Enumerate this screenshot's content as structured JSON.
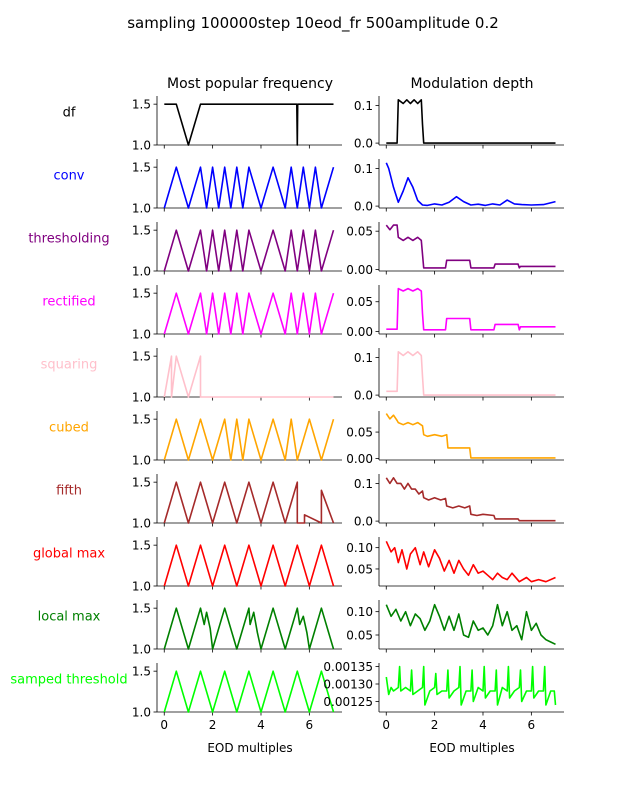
{
  "figure": {
    "title": "sampling 100000step 10eod_fr 500amplitude 0.2",
    "col_titles": [
      "Most popular frequency",
      "Modulation depth"
    ],
    "xlabel": "EOD multiples"
  },
  "rows": [
    {
      "label": "df",
      "color": "#000000"
    },
    {
      "label": "conv",
      "color": "#0000ff"
    },
    {
      "label": "thresholding",
      "color": "#800080"
    },
    {
      "label": "rectified",
      "color": "#ff00ff"
    },
    {
      "label": "squaring",
      "color": "#ffc0cb"
    },
    {
      "label": "cubed",
      "color": "#ffa500"
    },
    {
      "label": "fifth",
      "color": "#a52a2a"
    },
    {
      "label": "global max",
      "color": "#ff0000"
    },
    {
      "label": "local max",
      "color": "#008000"
    },
    {
      "label": "samped threshold",
      "color": "#00ff00"
    }
  ],
  "chart_data": [
    {
      "type": "line",
      "panel": "df-frequency",
      "color": "#000000",
      "ylim": [
        1.0,
        1.6
      ],
      "yticks": [
        "1.0",
        "1.5"
      ],
      "x": [
        0,
        0.5,
        1.0,
        1.5,
        2,
        3,
        4,
        5,
        5.48,
        5.5,
        5.52,
        6,
        7
      ],
      "y": [
        1.5,
        1.5,
        1.0,
        1.5,
        1.5,
        1.5,
        1.5,
        1.5,
        1.5,
        1.0,
        1.5,
        1.5,
        1.5
      ]
    },
    {
      "type": "line",
      "panel": "df-depth",
      "color": "#000000",
      "ylim": [
        -0.005,
        0.125
      ],
      "yticks": [
        "0.0",
        "0.1"
      ],
      "x": [
        0,
        0.45,
        0.5,
        0.7,
        0.85,
        1.0,
        1.15,
        1.3,
        1.45,
        1.5,
        1.55,
        3,
        5,
        7
      ],
      "y": [
        0,
        0,
        0.115,
        0.105,
        0.115,
        0.105,
        0.115,
        0.105,
        0.115,
        0.05,
        0,
        0,
        0,
        0
      ]
    },
    {
      "type": "line",
      "panel": "conv-frequency",
      "color": "#0000ff",
      "ylim": [
        1.0,
        1.6
      ],
      "yticks": [
        "1.0",
        "1.5"
      ],
      "x": [
        0,
        0.5,
        1.0,
        1.5,
        1.75,
        2.0,
        2.25,
        2.5,
        2.75,
        3.0,
        3.25,
        3.5,
        4.0,
        4.5,
        5.0,
        5.25,
        5.5,
        5.75,
        6.0,
        6.25,
        6.5,
        7.0
      ],
      "y": [
        1.0,
        1.5,
        1.0,
        1.5,
        1.0,
        1.5,
        1.0,
        1.5,
        1.0,
        1.5,
        1.0,
        1.5,
        1.0,
        1.5,
        1.0,
        1.5,
        1.0,
        1.5,
        1.0,
        1.5,
        1.0,
        1.5
      ]
    },
    {
      "type": "line",
      "panel": "conv-depth",
      "color": "#0000ff",
      "ylim": [
        -0.005,
        0.125
      ],
      "yticks": [
        "0.0",
        "0.1"
      ],
      "x": [
        0,
        0.1,
        0.3,
        0.5,
        0.7,
        0.9,
        1.1,
        1.3,
        1.5,
        1.7,
        2.0,
        2.3,
        2.6,
        2.9,
        3.2,
        3.5,
        3.8,
        4.1,
        4.4,
        4.7,
        5.0,
        5.3,
        5.6,
        6.0,
        6.5,
        7.0
      ],
      "y": [
        0.115,
        0.1,
        0.05,
        0.01,
        0.04,
        0.075,
        0.05,
        0.015,
        0.003,
        0.002,
        0.006,
        0.003,
        0.01,
        0.025,
        0.012,
        0.003,
        0.005,
        0.002,
        0.006,
        0.003,
        0.016,
        0.006,
        0.004,
        0.003,
        0.004,
        0.012
      ]
    },
    {
      "type": "line",
      "panel": "thresholding-frequency",
      "color": "#800080",
      "ylim": [
        1.0,
        1.6
      ],
      "yticks": [
        "1.0",
        "1.5"
      ],
      "x": [
        0,
        0.5,
        1.0,
        1.5,
        1.75,
        2.0,
        2.25,
        2.5,
        2.75,
        3.0,
        3.25,
        3.5,
        4.0,
        4.5,
        5.0,
        5.25,
        5.5,
        5.75,
        6.0,
        6.25,
        6.5,
        7.0
      ],
      "y": [
        1.0,
        1.5,
        1.0,
        1.5,
        1.0,
        1.5,
        1.0,
        1.5,
        1.0,
        1.5,
        1.0,
        1.5,
        1.0,
        1.5,
        1.0,
        1.5,
        1.0,
        1.5,
        1.0,
        1.5,
        1.0,
        1.5
      ]
    },
    {
      "type": "line",
      "panel": "thresholding-depth",
      "color": "#800080",
      "ylim": [
        -0.002,
        0.062
      ],
      "yticks": [
        "0.00",
        "0.05"
      ],
      "x": [
        0,
        0.15,
        0.3,
        0.45,
        0.5,
        0.7,
        0.9,
        1.1,
        1.3,
        1.45,
        1.5,
        1.55,
        2.45,
        2.5,
        2.55,
        3.45,
        3.5,
        3.55,
        4.45,
        4.5,
        4.55,
        5.45,
        5.5,
        5.55,
        7.0
      ],
      "y": [
        0.058,
        0.052,
        0.058,
        0.058,
        0.042,
        0.038,
        0.042,
        0.038,
        0.042,
        0.038,
        0.02,
        0.002,
        0.002,
        0.012,
        0.012,
        0.012,
        0.002,
        0.002,
        0.002,
        0.007,
        0.007,
        0.007,
        0.002,
        0.004,
        0.004
      ]
    },
    {
      "type": "line",
      "panel": "rectified-frequency",
      "color": "#ff00ff",
      "ylim": [
        1.0,
        1.6
      ],
      "yticks": [
        "1.0",
        "1.5"
      ],
      "x": [
        0,
        0.5,
        1.0,
        1.5,
        1.75,
        2.0,
        2.25,
        2.5,
        2.75,
        3.0,
        3.25,
        3.5,
        4.0,
        4.5,
        5.0,
        5.25,
        5.5,
        5.75,
        6.0,
        6.25,
        6.5,
        7.0
      ],
      "y": [
        1.0,
        1.5,
        1.0,
        1.5,
        1.0,
        1.5,
        1.0,
        1.5,
        1.0,
        1.5,
        1.0,
        1.5,
        1.0,
        1.5,
        1.0,
        1.5,
        1.0,
        1.5,
        1.0,
        1.5,
        1.0,
        1.5
      ]
    },
    {
      "type": "line",
      "panel": "rectified-depth",
      "color": "#ff00ff",
      "ylim": [
        -0.004,
        0.078
      ],
      "yticks": [
        "0.00",
        "0.05"
      ],
      "x": [
        0,
        0.4,
        0.45,
        0.5,
        0.7,
        0.9,
        1.1,
        1.3,
        1.45,
        1.5,
        1.55,
        2.45,
        2.5,
        2.55,
        3.45,
        3.5,
        3.55,
        4.45,
        4.5,
        4.55,
        5.45,
        5.5,
        5.55,
        7.0
      ],
      "y": [
        0.004,
        0.004,
        0.004,
        0.072,
        0.068,
        0.072,
        0.068,
        0.072,
        0.068,
        0.03,
        0.003,
        0.003,
        0.022,
        0.022,
        0.022,
        0.003,
        0.003,
        0.003,
        0.012,
        0.012,
        0.012,
        0.003,
        0.008,
        0.008
      ]
    },
    {
      "type": "line",
      "panel": "squaring-frequency",
      "color": "#ffc0cb",
      "ylim": [
        1.0,
        1.6
      ],
      "yticks": [
        "1.0",
        "1.5"
      ],
      "x": [
        0,
        0.3,
        0.3,
        0.5,
        1.0,
        1.5,
        1.5,
        7.0
      ],
      "y": [
        1.0,
        1.5,
        1.0,
        1.5,
        1.0,
        1.5,
        1.0,
        1.0
      ]
    },
    {
      "type": "line",
      "panel": "squaring-depth",
      "color": "#ffc0cb",
      "ylim": [
        -0.005,
        0.125
      ],
      "yticks": [
        "0.0",
        "0.1"
      ],
      "x": [
        0,
        0.45,
        0.5,
        0.7,
        0.9,
        1.1,
        1.3,
        1.45,
        1.5,
        1.55,
        7.0
      ],
      "y": [
        0.01,
        0.01,
        0.115,
        0.105,
        0.115,
        0.105,
        0.115,
        0.105,
        0.05,
        0,
        0
      ]
    },
    {
      "type": "line",
      "panel": "cubed-frequency",
      "color": "#ffa500",
      "ylim": [
        1.0,
        1.6
      ],
      "yticks": [
        "1.0",
        "1.5"
      ],
      "x": [
        0,
        0.5,
        1.0,
        1.5,
        2.0,
        2.5,
        2.75,
        3.0,
        3.25,
        3.5,
        4.0,
        4.5,
        5.0,
        5.25,
        5.5,
        6.0,
        6.5,
        7.0
      ],
      "y": [
        1.0,
        1.5,
        1.0,
        1.5,
        1.0,
        1.5,
        1.0,
        1.5,
        1.0,
        1.5,
        1.0,
        1.5,
        1.0,
        1.5,
        1.0,
        1.5,
        1.0,
        1.5
      ]
    },
    {
      "type": "line",
      "panel": "cubed-depth",
      "color": "#ffa500",
      "ylim": [
        -0.003,
        0.09
      ],
      "yticks": [
        "0.00",
        "0.05"
      ],
      "x": [
        0,
        0.15,
        0.3,
        0.45,
        0.5,
        0.7,
        0.9,
        1.1,
        1.3,
        1.5,
        1.55,
        1.7,
        2.0,
        2.3,
        2.5,
        2.55,
        3.45,
        3.5,
        7.0
      ],
      "y": [
        0.085,
        0.075,
        0.082,
        0.072,
        0.068,
        0.064,
        0.068,
        0.064,
        0.068,
        0.062,
        0.045,
        0.042,
        0.045,
        0.042,
        0.045,
        0.02,
        0.02,
        0.001,
        0.001
      ]
    },
    {
      "type": "line",
      "panel": "fifth-frequency",
      "color": "#a52a2a",
      "ylim": [
        1.0,
        1.6
      ],
      "yticks": [
        "1.0",
        "1.5"
      ],
      "x": [
        0,
        0.5,
        1.0,
        1.5,
        2.0,
        2.5,
        3.0,
        3.5,
        4.0,
        4.5,
        5.0,
        5.5,
        5.5,
        5.8,
        5.8,
        6.5,
        6.5,
        7.0
      ],
      "y": [
        1.0,
        1.5,
        1.0,
        1.5,
        1.0,
        1.5,
        1.0,
        1.5,
        1.0,
        1.5,
        1.0,
        1.5,
        1.0,
        1.0,
        1.1,
        1.0,
        1.4,
        1.0
      ]
    },
    {
      "type": "line",
      "panel": "fifth-depth",
      "color": "#a52a2a",
      "ylim": [
        -0.005,
        0.125
      ],
      "yticks": [
        "0.0",
        "0.1"
      ],
      "x": [
        0,
        0.15,
        0.3,
        0.45,
        0.6,
        0.75,
        0.9,
        1.05,
        1.2,
        1.35,
        1.5,
        1.55,
        1.75,
        2.0,
        2.25,
        2.45,
        2.5,
        2.75,
        3.0,
        3.25,
        3.45,
        3.5,
        3.75,
        4.0,
        4.45,
        4.5,
        5.0,
        5.45,
        5.5,
        7.0
      ],
      "y": [
        0.115,
        0.1,
        0.115,
        0.1,
        0.1,
        0.085,
        0.1,
        0.085,
        0.085,
        0.072,
        0.08,
        0.062,
        0.056,
        0.062,
        0.056,
        0.06,
        0.04,
        0.035,
        0.04,
        0.035,
        0.04,
        0.018,
        0.015,
        0.018,
        0.015,
        0.006,
        0.006,
        0.006,
        0.001,
        0.001
      ]
    },
    {
      "type": "line",
      "panel": "global-max-frequency",
      "color": "#ff0000",
      "ylim": [
        1.0,
        1.6
      ],
      "yticks": [
        "1.0",
        "1.5"
      ],
      "x": [
        0,
        0.5,
        1.0,
        1.5,
        2.0,
        2.5,
        3.0,
        3.5,
        4.0,
        4.5,
        5.0,
        5.5,
        6.0,
        6.5,
        7.0
      ],
      "y": [
        1.0,
        1.5,
        1.0,
        1.5,
        1.0,
        1.5,
        1.0,
        1.5,
        1.0,
        1.5,
        1.0,
        1.5,
        1.0,
        1.5,
        1.0
      ]
    },
    {
      "type": "line",
      "panel": "global-max-depth",
      "color": "#ff0000",
      "ylim": [
        0.01,
        0.125
      ],
      "yticks": [
        "0.05",
        "0.10"
      ],
      "x": [
        0,
        0.2,
        0.35,
        0.5,
        0.65,
        0.85,
        1.0,
        1.2,
        1.4,
        1.55,
        1.75,
        2.0,
        2.2,
        2.4,
        2.6,
        2.8,
        3.0,
        3.2,
        3.4,
        3.6,
        3.8,
        4.0,
        4.2,
        4.4,
        4.6,
        4.8,
        5.0,
        5.2,
        5.5,
        5.8,
        6.0,
        6.3,
        6.6,
        7.0
      ],
      "y": [
        0.115,
        0.09,
        0.1,
        0.065,
        0.095,
        0.05,
        0.085,
        0.1,
        0.06,
        0.09,
        0.055,
        0.095,
        0.075,
        0.045,
        0.07,
        0.04,
        0.07,
        0.05,
        0.035,
        0.06,
        0.04,
        0.045,
        0.035,
        0.025,
        0.04,
        0.03,
        0.025,
        0.04,
        0.02,
        0.03,
        0.02,
        0.025,
        0.02,
        0.03
      ]
    },
    {
      "type": "line",
      "panel": "local-max-frequency",
      "color": "#008000",
      "ylim": [
        1.0,
        1.6
      ],
      "yticks": [
        "1.0",
        "1.5"
      ],
      "x": [
        0,
        0.5,
        1.0,
        1.5,
        1.65,
        1.75,
        1.9,
        2.0,
        2.5,
        3.0,
        3.5,
        3.55,
        3.7,
        3.85,
        4.0,
        4.5,
        5.0,
        5.5,
        5.6,
        5.75,
        5.9,
        6.0,
        6.5,
        7.0
      ],
      "y": [
        1.0,
        1.5,
        1.0,
        1.5,
        1.3,
        1.45,
        1.25,
        1.0,
        1.5,
        1.0,
        1.5,
        1.3,
        1.45,
        1.2,
        1.0,
        1.5,
        1.0,
        1.5,
        1.3,
        1.4,
        1.2,
        1.0,
        1.5,
        1.0
      ]
    },
    {
      "type": "line",
      "panel": "local-max-depth",
      "color": "#008000",
      "ylim": [
        0.02,
        0.125
      ],
      "yticks": [
        "0.05",
        "0.10"
      ],
      "x": [
        0,
        0.2,
        0.4,
        0.6,
        0.8,
        1.0,
        1.2,
        1.4,
        1.6,
        1.8,
        2.0,
        2.2,
        2.4,
        2.6,
        2.8,
        3.0,
        3.2,
        3.4,
        3.6,
        3.8,
        4.0,
        4.2,
        4.4,
        4.6,
        4.8,
        5.0,
        5.2,
        5.4,
        5.6,
        5.8,
        6.0,
        6.2,
        6.4,
        6.6,
        6.8,
        7.0
      ],
      "y": [
        0.115,
        0.09,
        0.105,
        0.08,
        0.1,
        0.07,
        0.095,
        0.085,
        0.06,
        0.08,
        0.115,
        0.09,
        0.06,
        0.09,
        0.06,
        0.095,
        0.05,
        0.045,
        0.08,
        0.06,
        0.065,
        0.05,
        0.07,
        0.115,
        0.07,
        0.1,
        0.06,
        0.07,
        0.04,
        0.1,
        0.06,
        0.075,
        0.05,
        0.04,
        0.035,
        0.03
      ]
    },
    {
      "type": "line",
      "panel": "samped-threshold-frequency",
      "color": "#00ff00",
      "ylim": [
        1.0,
        1.6
      ],
      "yticks": [
        "1.0",
        "1.5"
      ],
      "x": [
        0,
        0.5,
        1.0,
        1.5,
        2.0,
        2.5,
        3.0,
        3.5,
        4.0,
        4.5,
        5.0,
        5.5,
        6.0,
        6.5,
        7.0
      ],
      "y": [
        1.0,
        1.5,
        1.0,
        1.5,
        1.0,
        1.5,
        1.0,
        1.5,
        1.0,
        1.5,
        1.0,
        1.5,
        1.0,
        1.5,
        1.0
      ]
    },
    {
      "type": "line",
      "panel": "samped-threshold-depth",
      "color": "#00ff00",
      "ylim": [
        0.00122,
        0.00136
      ],
      "yticks": [
        "0.00125",
        "0.00130",
        "0.00135"
      ],
      "x": [
        0,
        0.1,
        0.2,
        0.3,
        0.5,
        0.55,
        0.6,
        0.8,
        1.0,
        1.05,
        1.1,
        1.3,
        1.5,
        1.55,
        1.6,
        1.8,
        2.0,
        2.05,
        2.1,
        2.3,
        2.5,
        2.55,
        2.6,
        2.8,
        3.0,
        3.05,
        3.1,
        3.3,
        3.5,
        3.55,
        3.6,
        3.8,
        4.0,
        4.05,
        4.1,
        4.3,
        4.5,
        4.55,
        4.6,
        4.8,
        5.0,
        5.05,
        5.1,
        5.3,
        5.5,
        5.55,
        5.6,
        5.8,
        6.0,
        6.05,
        6.1,
        6.3,
        6.5,
        6.55,
        6.6,
        6.8,
        6.95,
        7.0
      ],
      "y": [
        0.00132,
        0.00127,
        0.00129,
        0.00128,
        0.00129,
        0.00135,
        0.00128,
        0.00129,
        0.00128,
        0.00134,
        0.00127,
        0.00128,
        0.00129,
        0.00135,
        0.00124,
        0.00128,
        0.00129,
        0.00133,
        0.00127,
        0.00128,
        0.00128,
        0.00134,
        0.00126,
        0.00128,
        0.00129,
        0.00135,
        0.00124,
        0.00128,
        0.00128,
        0.00134,
        0.00125,
        0.00129,
        0.00128,
        0.00135,
        0.00126,
        0.00128,
        0.00128,
        0.00134,
        0.00124,
        0.00129,
        0.00128,
        0.00135,
        0.00126,
        0.00128,
        0.00129,
        0.00134,
        0.00125,
        0.00128,
        0.00128,
        0.00135,
        0.00126,
        0.00128,
        0.00128,
        0.00135,
        0.00124,
        0.00128,
        0.00128,
        0.00124
      ]
    }
  ]
}
